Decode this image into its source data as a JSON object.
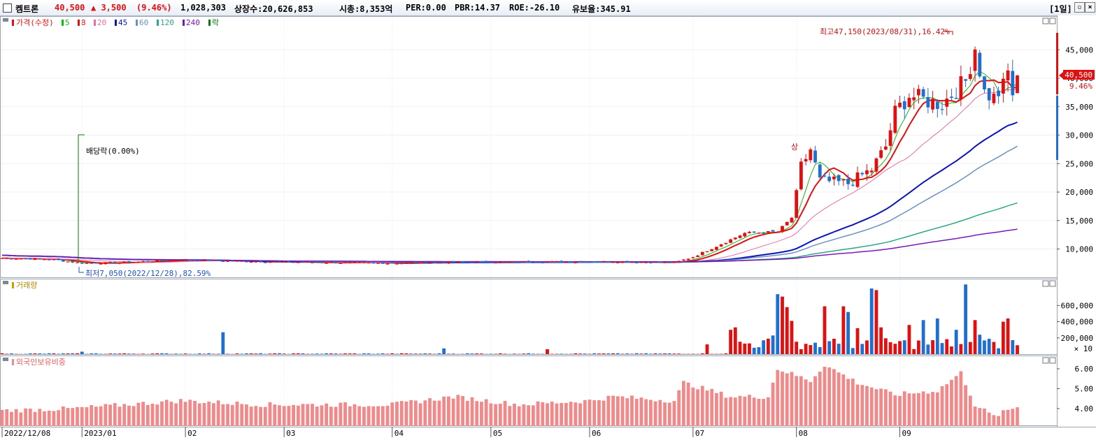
{
  "header": {
    "stock_name": "켐트론",
    "price": "40,500",
    "change": "▲ 3,500",
    "change_pct": "(9.46%)",
    "volume": "1,028,303",
    "listed_shares": "상장수:20,626,853",
    "market_cap": "시총:8,353억",
    "per": "PER:0.00",
    "pbr": "PBR:14.37",
    "roe": "ROE:-26.10",
    "float_ratio": "유보율:345.91",
    "period": "[1일]",
    "restore_icon": "restore-icon",
    "close_icon": "close-icon"
  },
  "legend": {
    "price_label": "가격(수정)",
    "ma": [
      {
        "label": "5",
        "color": "#19b619"
      },
      {
        "label": "8",
        "color": "#e01010"
      },
      {
        "label": "20",
        "color": "#e66ea6"
      },
      {
        "label": "45",
        "color": "#0a14b4"
      },
      {
        "label": "60",
        "color": "#6c90c0"
      },
      {
        "label": "120",
        "color": "#2fa68a"
      },
      {
        "label": "240",
        "color": "#7a1ab4"
      },
      {
        "label": "락",
        "color": "#0a7a0a"
      }
    ],
    "volume_label": "거래량",
    "foreign_label": "외국인보유비중"
  },
  "annotations": {
    "dividend": "배당락(0.00%)",
    "low": "최저7,050(2022/12/28),82.59%",
    "high": "최고47,150(2023/08/31),16.42%",
    "sang": "상",
    "price_tag": "40,500",
    "pct_tag": "9.46%",
    "vol_unit": "× 10"
  },
  "chart_data": {
    "type": "candlestick",
    "price_ticks": [
      "45,000",
      "40,000",
      "35,000",
      "30,000",
      "25,000",
      "20,000",
      "15,000",
      "10,000"
    ],
    "price_tick_values": [
      45000,
      40000,
      35000,
      30000,
      25000,
      20000,
      15000,
      10000
    ],
    "volume_ticks": [
      "600,000",
      "400,000",
      "200,000"
    ],
    "volume_tick_values": [
      60000,
      40000,
      20000
    ],
    "foreign_ticks": [
      "6.00",
      "5.00",
      "4.00"
    ],
    "foreign_tick_values": [
      6.0,
      5.0,
      4.0
    ],
    "x_labels": [
      "2022/12/08",
      "2023/01",
      "02",
      "03",
      "04",
      "05",
      "06",
      "07",
      "08",
      "09"
    ],
    "x_label_sessions": [
      0,
      17,
      39,
      60,
      83,
      104,
      125,
      147,
      169,
      191
    ],
    "last_close": 40500,
    "high": 47150,
    "low": 7050,
    "colors": {
      "up": "#e01010",
      "down": "#1f6fd0",
      "foreign": "#f08a8a"
    }
  }
}
